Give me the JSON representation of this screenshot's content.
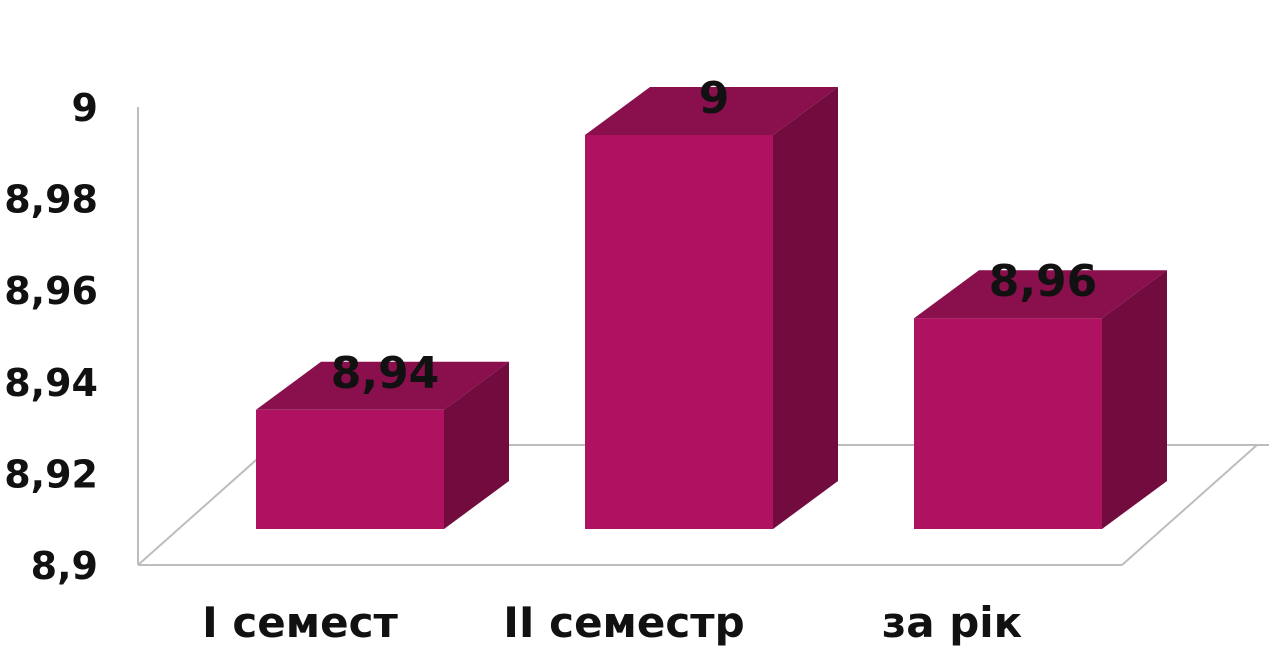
{
  "chart_data": {
    "type": "bar",
    "style": "3d-column",
    "title": "",
    "xlabel": "",
    "ylabel": "",
    "categories": [
      "I семест",
      "II семестр",
      "за рік"
    ],
    "values": [
      8.94,
      9,
      8.96
    ],
    "data_labels": [
      "8,94",
      "9",
      "8,96"
    ],
    "y_ticks": [
      "8,9",
      "8,92",
      "8,94",
      "8,96",
      "8,98",
      "9"
    ],
    "ylim": [
      8.9,
      9
    ],
    "grid": false,
    "legend": "none",
    "colors": {
      "bar_front": "#b01262",
      "bar_top": "#8a0f4d",
      "bar_side": "#720b3e",
      "axis": "#bdbdbd",
      "text": "#111111"
    }
  }
}
